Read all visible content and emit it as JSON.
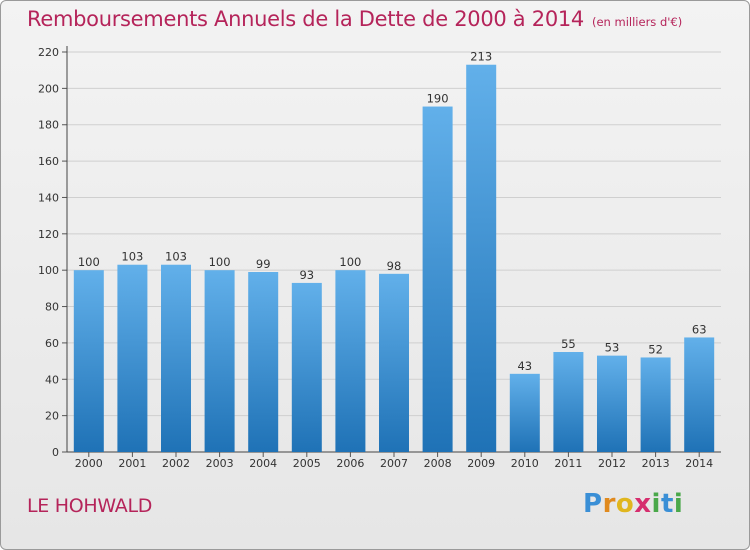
{
  "title": "Remboursements Annuels de la Dette de 2000 à 2014",
  "subtitle": "(en milliers d'€)",
  "commune": "LE HOHWALD",
  "logo": {
    "letters": [
      "P",
      "r",
      "o",
      "x",
      "i",
      "t",
      "i"
    ],
    "colors": [
      "#3a8fd6",
      "#e08a1e",
      "#e0b61e",
      "#d62e6e",
      "#4aa84a",
      "#3a8fd6",
      "#4aa84a"
    ]
  },
  "colors": {
    "bar_top": "#62b0ea",
    "bar_bottom": "#1f72b6",
    "accent": "#b5245a"
  },
  "chart_data": {
    "type": "bar",
    "title": "Remboursements Annuels de la Dette de 2000 à 2014",
    "subtitle": "(en milliers d'€)",
    "categories": [
      "2000",
      "2001",
      "2002",
      "2003",
      "2004",
      "2005",
      "2006",
      "2007",
      "2008",
      "2009",
      "2010",
      "2011",
      "2012",
      "2013",
      "2014"
    ],
    "values": [
      100,
      103,
      103,
      100,
      99,
      93,
      100,
      98,
      190,
      213,
      43,
      55,
      53,
      52,
      63
    ],
    "ylim": [
      0,
      220
    ],
    "yticks": [
      0,
      20,
      40,
      60,
      80,
      100,
      120,
      140,
      160,
      180,
      200,
      220
    ],
    "grid": true,
    "legend": "none"
  }
}
